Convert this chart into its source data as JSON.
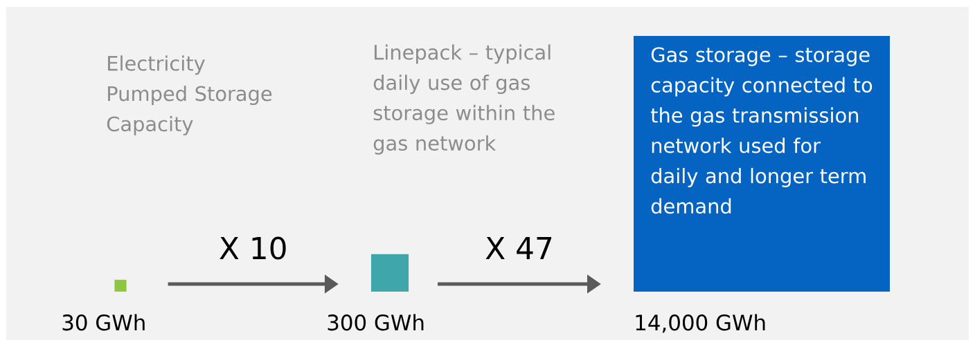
{
  "chart_data": {
    "type": "other",
    "categories": [
      "Electricity Pumped Storage Capacity",
      "Linepack – typical daily use of gas storage within the gas network",
      "Gas storage – storage capacity connected to the gas transmission network used for daily and longer term demand"
    ],
    "values": [
      30,
      300,
      14000
    ],
    "value_labels": [
      "30 GWh",
      "300 GWh",
      "14,000 GWh"
    ],
    "colors": [
      "#8dc63f",
      "#3fa7a9",
      "#0563c1"
    ],
    "annotations": [
      "X 10",
      "X 47"
    ]
  }
}
